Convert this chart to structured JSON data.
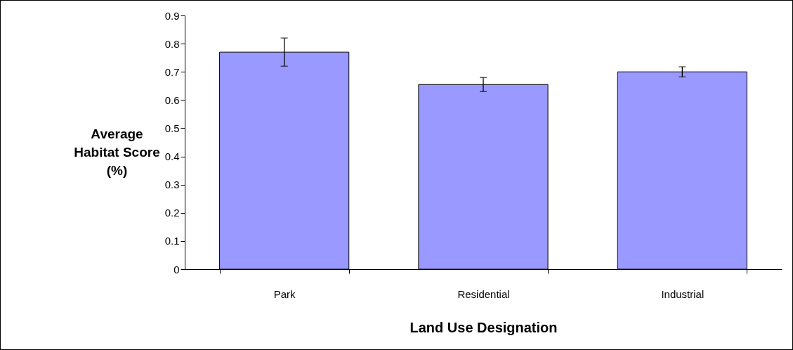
{
  "chart_data": {
    "type": "bar",
    "xlabel": "Land Use Designation",
    "ylabel": "Average\nHabitat Score\n(%)",
    "categories": [
      "Park",
      "Residential",
      "Industrial"
    ],
    "values": [
      0.77,
      0.655,
      0.7
    ],
    "errors": [
      0.05,
      0.025,
      0.018
    ],
    "color": "#9999ff",
    "ylim": [
      0,
      0.9
    ],
    "yticks": [
      0,
      0.1,
      0.2,
      0.3,
      0.4,
      0.5,
      0.6,
      0.7,
      0.8,
      0.9
    ],
    "grid": false
  }
}
